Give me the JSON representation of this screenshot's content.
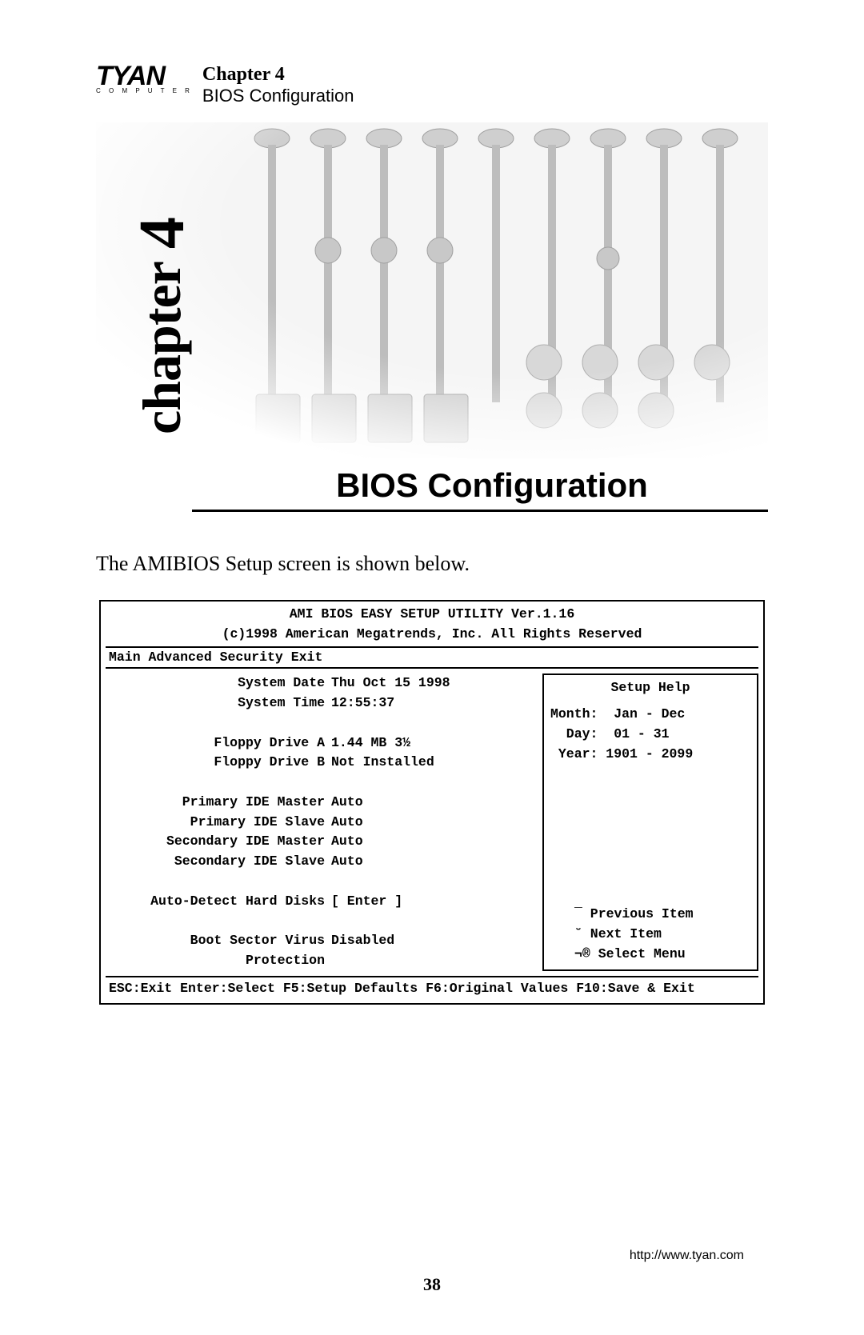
{
  "header": {
    "logo_main": "TYAN",
    "logo_sub": "C O M P U T E R",
    "chapter_label": "Chapter 4",
    "chapter_subtitle": "BIOS Configuration"
  },
  "hero": {
    "vertical_text": "chapter",
    "vertical_num": "4",
    "section_title": "BIOS Configuration",
    "pcb_colors": {
      "trace": "#b9b9b9",
      "pad": "#d6d6d6",
      "bg_fade": "#ffffff"
    }
  },
  "intro": "The AMIBIOS Setup screen is shown below.",
  "bios": {
    "title1": "AMI BIOS EASY SETUP UTILITY Ver.1.16",
    "title2": "(c)1998 American Megatrends, Inc. All Rights Reserved",
    "menu": "Main   Advanced   Security   Exit",
    "rows": [
      {
        "label": "System Date",
        "value": "Thu Oct 15 1998"
      },
      {
        "label": "System Time",
        "value": "12:55:37"
      },
      {
        "label": "",
        "value": ""
      },
      {
        "label": "Floppy Drive A",
        "value": "1.44 MB 3½"
      },
      {
        "label": "Floppy Drive B",
        "value": "Not Installed"
      },
      {
        "label": "",
        "value": ""
      },
      {
        "label": "Primary IDE Master",
        "value": "Auto"
      },
      {
        "label": "Primary IDE Slave",
        "value": "Auto"
      },
      {
        "label": "Secondary IDE Master",
        "value": "Auto"
      },
      {
        "label": "Secondary IDE Slave",
        "value": "Auto"
      },
      {
        "label": "",
        "value": ""
      },
      {
        "label": "Auto-Detect Hard Disks",
        "value": "[ Enter ]"
      },
      {
        "label": "",
        "value": ""
      },
      {
        "label": "Boot Sector Virus Protection",
        "value": "Disabled"
      }
    ],
    "help": {
      "title": "Setup Help",
      "lines": [
        "Month:  Jan - Dec",
        "  Day:  01 - 31",
        " Year: 1901 - 2099"
      ],
      "nav": [
        "¯ Previous Item",
        "˘ Next Item",
        "¬® Select Menu"
      ]
    },
    "footer": "ESC:Exit  Enter:Select  F5:Setup Defaults  F6:Original Values  F10:Save & Exit"
  },
  "footer": {
    "url": "http://www.tyan.com",
    "page": "38"
  }
}
